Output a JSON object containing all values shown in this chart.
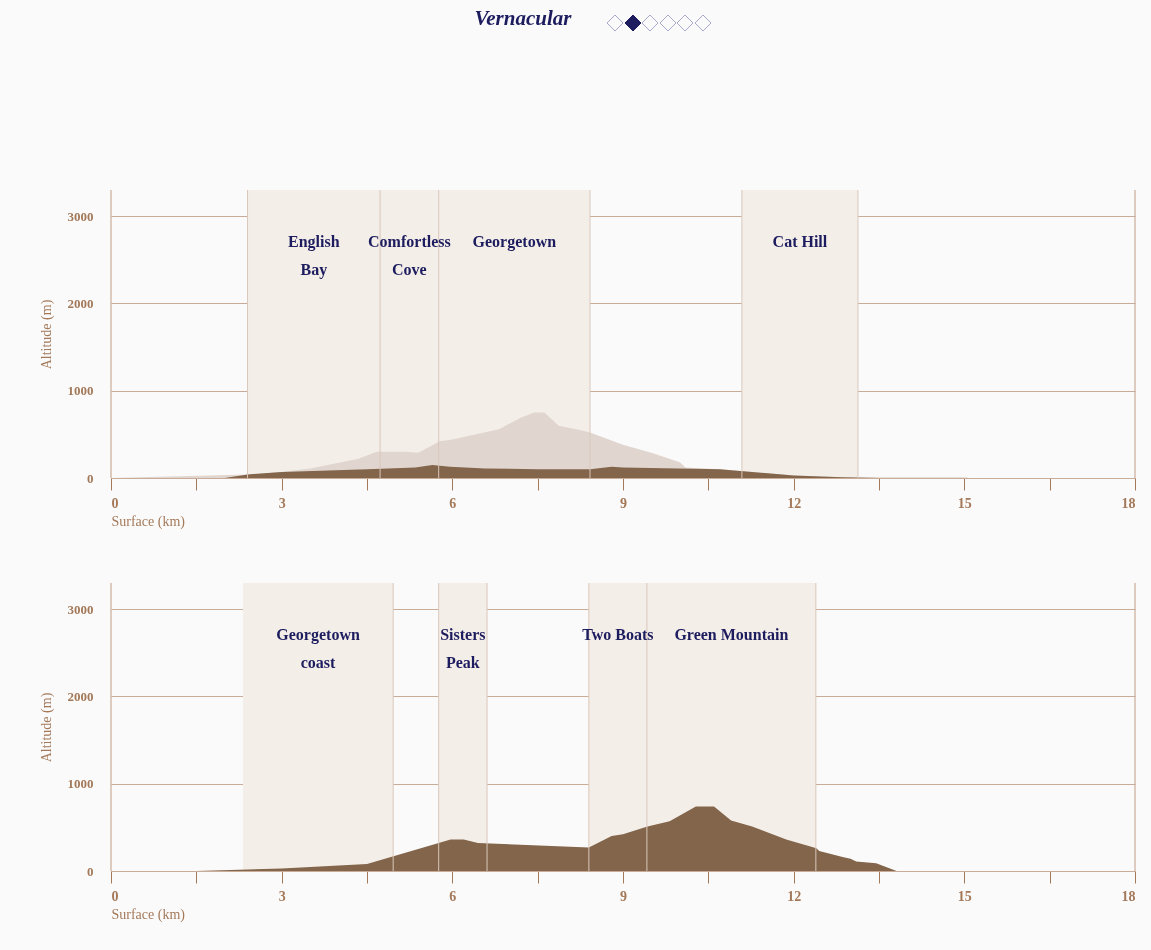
{
  "chart_data": [
    {
      "type": "area",
      "title": "Vernacular",
      "xlabel": "Surface (km)",
      "ylabel": "Altitude (m)",
      "xlim": [
        0,
        18
      ],
      "ylim": [
        0,
        3300
      ],
      "xticks": [
        0,
        {
          "value": 1.5,
          "label": null
        },
        3,
        {
          "value": 4.5,
          "label": null
        },
        6,
        {
          "value": 7.5,
          "label": null
        },
        9,
        {
          "value": 10.5,
          "label": null
        },
        12,
        {
          "value": 13.5,
          "label": null
        },
        15,
        {
          "value": 16.5,
          "label": null
        },
        18
      ],
      "yticks": [
        0,
        1000,
        2000,
        3000
      ],
      "grid": "y",
      "series": [
        {
          "color": "#e0d6cf",
          "x": [
            0,
            2.4,
            3.0,
            3.5,
            4.35,
            4.67,
            5.2,
            5.4,
            5.78,
            6.0,
            6.82,
            7.2,
            7.44,
            7.62,
            7.87,
            8.24,
            8.42,
            9.0,
            9.5,
            10.0,
            10.1,
            10.7,
            12.0,
            12.85,
            13.5,
            15.0,
            15.1
          ],
          "values": [
            0,
            40,
            70,
            110,
            220,
            300,
            300,
            290,
            420,
            440,
            560,
            690,
            750,
            750,
            600,
            550,
            520,
            380,
            290,
            180,
            120,
            100,
            30,
            10,
            10,
            10,
            0
          ]
        },
        {
          "color": "#82654b",
          "x": [
            0,
            2.0,
            2.4,
            3.0,
            4.5,
            5.35,
            5.65,
            5.96,
            6.58,
            7.5,
            8.42,
            8.8,
            9.0,
            10.7,
            12.0,
            12.85,
            13.5
          ],
          "values": [
            0,
            0,
            40,
            70,
            100,
            120,
            150,
            130,
            110,
            100,
            100,
            130,
            120,
            100,
            30,
            10,
            0
          ]
        }
      ],
      "ref_lines": [
        {
          "axis": "x",
          "value": 2.4
        },
        {
          "axis": "x",
          "value": 4.73
        },
        {
          "axis": "x",
          "value": 5.76
        },
        {
          "axis": "x",
          "value": 8.42
        },
        {
          "axis": "x",
          "value": 11.09
        },
        {
          "axis": "x",
          "value": 13.13
        }
      ],
      "bands": [
        {
          "axis": "x",
          "from": 2.4,
          "to": 4.73,
          "label": "English\nBay",
          "color": "#f4eee9"
        },
        {
          "axis": "x",
          "from": 4.73,
          "to": 5.76,
          "label": "Comfortless\nCove",
          "color": "#f4eee9"
        },
        {
          "axis": "x",
          "from": 5.76,
          "to": 8.42,
          "label": "Georgetown",
          "color": "#f4eee9"
        },
        {
          "axis": "x",
          "from": 11.09,
          "to": 13.13,
          "label": "Cat Hill",
          "color": "#f4eee9"
        }
      ]
    },
    {
      "type": "area",
      "xlabel": "Surface (km)",
      "ylabel": "Altitude (m)",
      "xlim": [
        0,
        18
      ],
      "ylim": [
        0,
        3300
      ],
      "xticks": [
        0,
        {
          "value": 1.5,
          "label": null
        },
        3,
        {
          "value": 4.5,
          "label": null
        },
        6,
        {
          "value": 7.5,
          "label": null
        },
        9,
        {
          "value": 10.5,
          "label": null
        },
        12,
        {
          "value": 13.5,
          "label": null
        },
        15,
        {
          "value": 16.5,
          "label": null
        },
        18
      ],
      "yticks": [
        0,
        1000,
        2000,
        3000
      ],
      "grid": "y",
      "series": [
        {
          "color": "#82654b",
          "x": [
            0,
            1.5,
            3.0,
            4.5,
            5.97,
            6.2,
            6.45,
            8.4,
            8.8,
            9.0,
            9.43,
            9.82,
            10.28,
            10.6,
            10.9,
            11.27,
            11.87,
            12.4,
            12.45,
            12.86,
            13.0,
            13.1,
            13.45,
            13.81,
            18
          ],
          "values": [
            0,
            0,
            30,
            80,
            360,
            360,
            320,
            270,
            400,
            420,
            510,
            570,
            740,
            740,
            580,
            510,
            360,
            260,
            230,
            160,
            140,
            110,
            90,
            0,
            0
          ]
        }
      ],
      "ref_lines": [
        {
          "axis": "x",
          "value": 4.96
        },
        {
          "axis": "x",
          "value": 5.76
        },
        {
          "axis": "x",
          "value": 6.61
        },
        {
          "axis": "x",
          "value": 8.4
        },
        {
          "axis": "x",
          "value": 9.42
        },
        {
          "axis": "x",
          "value": 12.39
        }
      ],
      "bands": [
        {
          "axis": "x",
          "from": 2.32,
          "to": 4.96,
          "label": "Georgetown\ncoast",
          "color": "#f4eee9"
        },
        {
          "axis": "x",
          "from": 5.76,
          "to": 6.61,
          "label": "Sisters\nPeak",
          "color": "#f4eee9"
        },
        {
          "axis": "x",
          "from": 8.4,
          "to": 9.42,
          "label": "Two Boats",
          "color": "#f4eee9"
        },
        {
          "axis": "x",
          "from": 9.42,
          "to": 12.39,
          "label": "Green Mountain",
          "color": "#f4eee9"
        }
      ]
    }
  ]
}
